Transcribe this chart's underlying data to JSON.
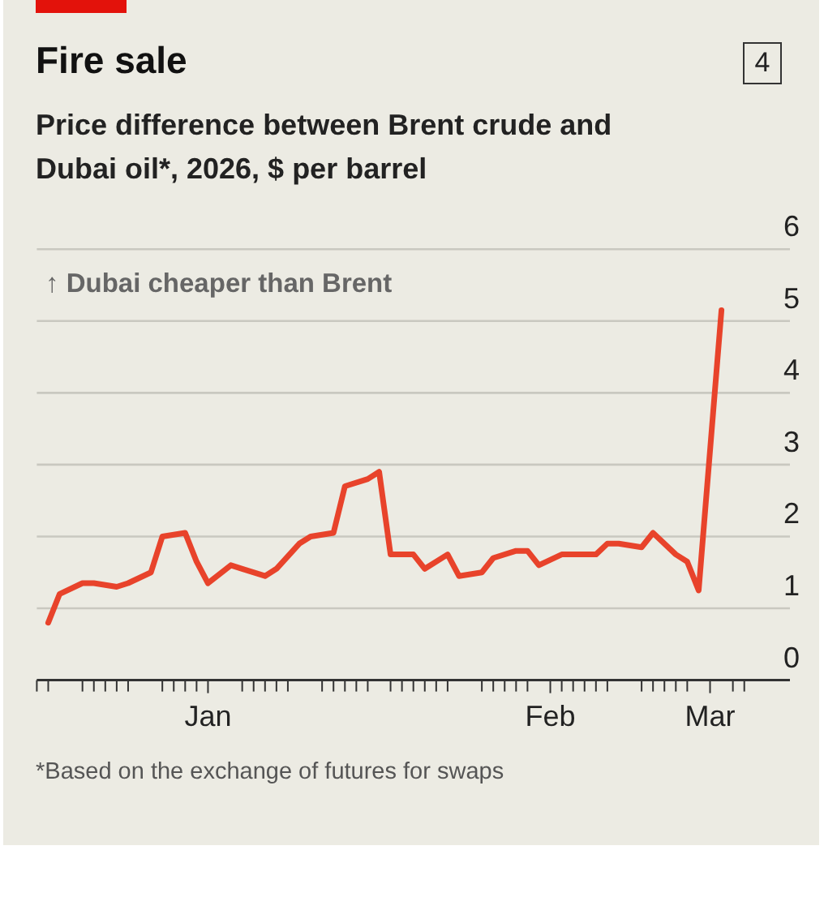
{
  "chart_data": {
    "type": "line",
    "title": "Fire sale",
    "subtitle": "Price difference between Brent crude and Dubai oil*, 2026, $ per barrel",
    "annotations": [
      "↑ Dubai cheaper than Brent",
      "*Based on the exchange of futures for swaps",
      "4"
    ],
    "x": [
      "2026-01-02",
      "2026-01-03",
      "2026-01-05",
      "2026-01-06",
      "2026-01-08",
      "2026-01-09",
      "2026-01-11",
      "2026-01-12",
      "2026-01-14",
      "2026-01-15",
      "2026-01-16",
      "2026-01-18",
      "2026-01-19",
      "2026-01-21",
      "2026-01-22",
      "2026-01-24",
      "2026-01-25",
      "2026-01-27",
      "2026-01-28",
      "2026-01-30",
      "2026-01-31",
      "2026-02-01",
      "2026-02-03",
      "2026-02-04",
      "2026-02-06",
      "2026-02-07",
      "2026-02-09",
      "2026-02-10",
      "2026-02-12",
      "2026-02-13",
      "2026-02-14",
      "2026-02-16",
      "2026-02-17",
      "2026-02-19",
      "2026-02-20",
      "2026-02-21",
      "2026-02-23",
      "2026-02-24",
      "2026-02-26",
      "2026-02-27",
      "2026-02-28",
      "2026-03-02"
    ],
    "series": [
      {
        "color": "#e8432b",
        "values": [
          0.8,
          1.2,
          1.35,
          1.35,
          1.3,
          1.35,
          1.5,
          2.0,
          2.05,
          1.65,
          1.35,
          1.6,
          1.55,
          1.45,
          1.55,
          1.9,
          2.0,
          2.05,
          2.7,
          2.8,
          2.9,
          1.75,
          1.75,
          1.55,
          1.75,
          1.45,
          1.5,
          1.7,
          1.8,
          1.8,
          1.6,
          1.75,
          1.75,
          1.75,
          1.9,
          1.9,
          1.85,
          2.05,
          1.75,
          1.65,
          1.25,
          5.15
        ]
      }
    ],
    "xlim": [
      "2026-01-01",
      "2026-03-08"
    ],
    "xticks": [
      {
        "value": "2026-01-01",
        "label": null
      },
      {
        "value": "2026-01-02",
        "label": null
      },
      {
        "value": "2026-01-05",
        "label": null
      },
      {
        "value": "2026-01-06",
        "label": null
      },
      {
        "value": "2026-01-07",
        "label": null
      },
      {
        "value": "2026-01-08",
        "label": null
      },
      {
        "value": "2026-01-09",
        "label": null
      },
      {
        "value": "2026-01-12",
        "label": null
      },
      {
        "value": "2026-01-13",
        "label": null
      },
      {
        "value": "2026-01-14",
        "label": null
      },
      {
        "value": "2026-01-15",
        "label": null
      },
      {
        "value": "2026-01-16",
        "label": "Jan"
      },
      {
        "value": "2026-01-19",
        "label": null
      },
      {
        "value": "2026-01-20",
        "label": null
      },
      {
        "value": "2026-01-21",
        "label": null
      },
      {
        "value": "2026-01-22",
        "label": null
      },
      {
        "value": "2026-01-23",
        "label": null
      },
      {
        "value": "2026-01-26",
        "label": null
      },
      {
        "value": "2026-01-27",
        "label": null
      },
      {
        "value": "2026-01-28",
        "label": null
      },
      {
        "value": "2026-01-29",
        "label": null
      },
      {
        "value": "2026-01-30",
        "label": null
      },
      {
        "value": "2026-02-01",
        "label": null
      },
      {
        "value": "2026-02-02",
        "label": null
      },
      {
        "value": "2026-02-03",
        "label": null
      },
      {
        "value": "2026-02-04",
        "label": null
      },
      {
        "value": "2026-02-05",
        "label": null
      },
      {
        "value": "2026-02-06",
        "label": null
      },
      {
        "value": "2026-02-09",
        "label": null
      },
      {
        "value": "2026-02-10",
        "label": null
      },
      {
        "value": "2026-02-11",
        "label": null
      },
      {
        "value": "2026-02-12",
        "label": null
      },
      {
        "value": "2026-02-13",
        "label": null
      },
      {
        "value": "2026-02-15",
        "label": "Feb"
      },
      {
        "value": "2026-02-16",
        "label": null
      },
      {
        "value": "2026-02-17",
        "label": null
      },
      {
        "value": "2026-02-18",
        "label": null
      },
      {
        "value": "2026-02-19",
        "label": null
      },
      {
        "value": "2026-02-20",
        "label": null
      },
      {
        "value": "2026-02-23",
        "label": null
      },
      {
        "value": "2026-02-24",
        "label": null
      },
      {
        "value": "2026-02-25",
        "label": null
      },
      {
        "value": "2026-02-26",
        "label": null
      },
      {
        "value": "2026-02-27",
        "label": null
      },
      {
        "value": "2026-03-01",
        "label": "Mar"
      },
      {
        "value": "2026-03-03",
        "label": null
      },
      {
        "value": "2026-03-04",
        "label": null
      }
    ],
    "ylim": [
      0,
      6
    ],
    "yticks": [
      0,
      1,
      2,
      3,
      4,
      5,
      6
    ],
    "grid": "y",
    "marker": "none",
    "line_style": "solid"
  }
}
